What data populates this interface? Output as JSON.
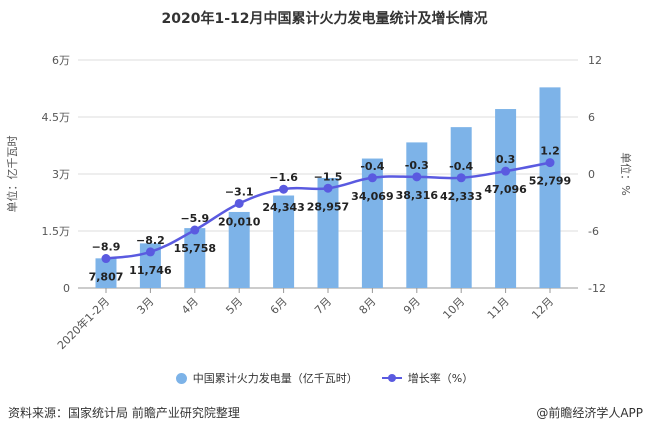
{
  "chart_data": {
    "type": "bar+line",
    "title": "2020年1-12月中国累计火力发电量统计及增长情况",
    "categories": [
      "2020年1-2月",
      "3月",
      "4月",
      "5月",
      "6月",
      "7月",
      "8月",
      "9月",
      "10月",
      "11月",
      "12月"
    ],
    "series": [
      {
        "name": "中国累计火力发电量（亿千瓦时）",
        "type": "bar",
        "axis": "left",
        "color": "#7db3e8",
        "values": [
          7807,
          11746,
          15758,
          20010,
          24343,
          28957,
          34069,
          38316,
          42333,
          47096,
          52799
        ],
        "labels": [
          "7,807",
          "11,746",
          "15,758",
          "20,010",
          "24,343",
          "28,957",
          "34,069",
          "38,316",
          "42,333",
          "47,096",
          "52,799"
        ]
      },
      {
        "name": "增长率（%）",
        "type": "line",
        "axis": "right",
        "color": "#5a5ae0",
        "values": [
          -8.9,
          -8.2,
          -5.9,
          -3.1,
          -1.6,
          -1.5,
          -0.4,
          -0.3,
          -0.4,
          0.3,
          1.2
        ],
        "labels": [
          "−8.9",
          "−8.2",
          "−5.9",
          "−3.1",
          "−1.6",
          "−1.5",
          "-0.4",
          "-0.3",
          "-0.4",
          "0.3",
          "1.2"
        ]
      }
    ],
    "ylabel_left": "单位：亿千瓦时",
    "ylabel_right": "单位：%",
    "ylim_left": [
      0,
      60000
    ],
    "ylim_right": [
      -12,
      12
    ],
    "yticks_left": [
      "0",
      "1.5万",
      "3万",
      "4.5万",
      "6万"
    ],
    "yticks_right": [
      "-12",
      "-6",
      "0",
      "6",
      "12"
    ],
    "grid": true,
    "legend_position": "bottom"
  },
  "footer": {
    "source": "资料来源：国家统计局 前瞻产业研究院整理",
    "credit": "@前瞻经济学人APP"
  }
}
